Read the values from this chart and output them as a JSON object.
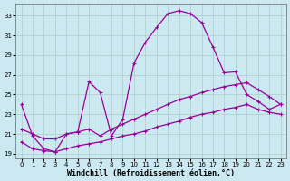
{
  "xlabel": "Windchill (Refroidissement éolien,°C)",
  "bg_color": "#cce8f0",
  "line_color": "#990099",
  "grid_color": "#aacccc",
  "line1_x": [
    0,
    1,
    2,
    3,
    4,
    5,
    6,
    7,
    8,
    9,
    10,
    11,
    12,
    13,
    14,
    15,
    16,
    17,
    18,
    19,
    20,
    21,
    22,
    23
  ],
  "line1_y": [
    24.0,
    20.8,
    19.5,
    19.2,
    21.0,
    21.2,
    26.3,
    25.2,
    20.8,
    22.5,
    28.2,
    30.3,
    31.8,
    33.2,
    33.5,
    33.2,
    32.3,
    29.8,
    27.2,
    27.3,
    25.0,
    24.3,
    23.5,
    24.0
  ],
  "line2_x": [
    0,
    1,
    2,
    3,
    4,
    5,
    6,
    7,
    8,
    9,
    10,
    11,
    12,
    13,
    14,
    15,
    16,
    17,
    18,
    19,
    20,
    21,
    22,
    23
  ],
  "line2_y": [
    21.5,
    21.0,
    20.5,
    20.5,
    21.0,
    21.2,
    21.5,
    20.8,
    21.5,
    22.0,
    22.5,
    23.0,
    23.5,
    24.0,
    24.5,
    24.8,
    25.2,
    25.5,
    25.8,
    26.0,
    26.2,
    25.5,
    24.8,
    24.0
  ],
  "line3_x": [
    0,
    1,
    2,
    3,
    4,
    5,
    6,
    7,
    8,
    9,
    10,
    11,
    12,
    13,
    14,
    15,
    16,
    17,
    18,
    19,
    20,
    21,
    22,
    23
  ],
  "line3_y": [
    20.2,
    19.5,
    19.3,
    19.2,
    19.5,
    19.8,
    20.0,
    20.2,
    20.5,
    20.8,
    21.0,
    21.3,
    21.7,
    22.0,
    22.3,
    22.7,
    23.0,
    23.2,
    23.5,
    23.7,
    24.0,
    23.5,
    23.2,
    23.0
  ],
  "xlim": [
    -0.5,
    23.5
  ],
  "ylim": [
    18.5,
    34.2
  ],
  "xticks": [
    0,
    1,
    2,
    3,
    4,
    5,
    6,
    7,
    8,
    9,
    10,
    11,
    12,
    13,
    14,
    15,
    16,
    17,
    18,
    19,
    20,
    21,
    22,
    23
  ],
  "yticks": [
    19,
    21,
    23,
    25,
    27,
    29,
    31,
    33
  ],
  "marker": "+",
  "markersize": 3.5,
  "linewidth": 0.9,
  "tick_fontsize": 5.0,
  "xlabel_fontsize": 6.0
}
